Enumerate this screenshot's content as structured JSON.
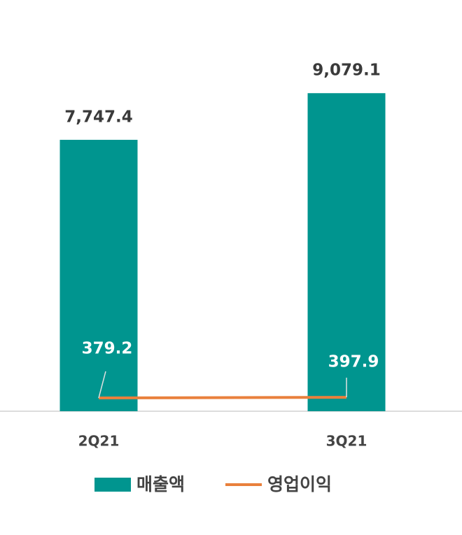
{
  "chart_data": {
    "type": "bar-line",
    "categories": [
      "2Q21",
      "3Q21"
    ],
    "series": [
      {
        "name": "매출액",
        "type": "bar",
        "color": "#00958f",
        "values": [
          7747.4,
          9079.1
        ],
        "value_labels": [
          "7,747.4",
          "9,079.1"
        ]
      },
      {
        "name": "영업이익",
        "type": "line",
        "color": "#e9803c",
        "values": [
          379.2,
          397.9
        ],
        "value_labels": [
          "379.2",
          "397.9"
        ]
      }
    ],
    "ylim": [
      0,
      11000
    ],
    "legend": "bottom"
  }
}
